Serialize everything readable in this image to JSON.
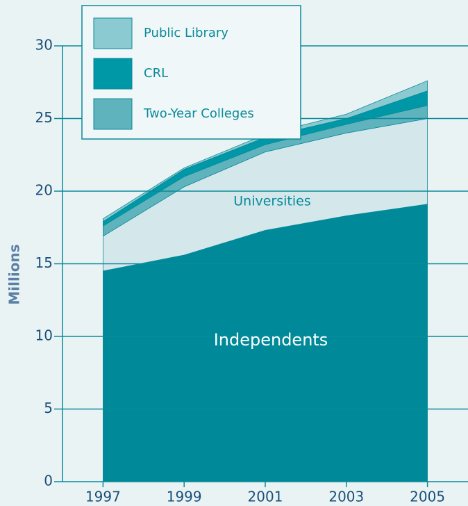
{
  "chart_data": {
    "type": "stacked_area",
    "y_label": "Millions",
    "x": [
      1997,
      1999,
      2001,
      2003,
      2005
    ],
    "xlim": [
      1996,
      2006
    ],
    "xticks": [
      1997,
      1999,
      2001,
      2003,
      2005
    ],
    "ylim": [
      0,
      30
    ],
    "yticks": [
      0,
      5,
      10,
      15,
      20,
      25,
      30
    ],
    "grid": true,
    "legend": "upper left",
    "series": [
      {
        "name": "Universities",
        "color": "#008a99",
        "values": [
          14.5,
          15.6,
          17.3,
          18.3,
          19.1
        ],
        "legend": false
      },
      {
        "name": "Independents",
        "color": "#d4e8ec",
        "values": [
          2.4,
          4.7,
          5.4,
          5.7,
          5.9
        ],
        "legend": false
      },
      {
        "name": "Two-Year Colleges",
        "color": "#5fb3bd",
        "values": [
          0.7,
          0.7,
          0.5,
          0.6,
          0.9
        ],
        "legend": true
      },
      {
        "name": "CRL",
        "color": "#0097a7",
        "values": [
          0.3,
          0.5,
          0.5,
          0.4,
          1.0
        ],
        "legend": true
      },
      {
        "name": "Public Library",
        "color": "#8ccad1",
        "values": [
          0.2,
          0.1,
          0.2,
          0.3,
          0.7
        ],
        "legend": true
      }
    ]
  }
}
